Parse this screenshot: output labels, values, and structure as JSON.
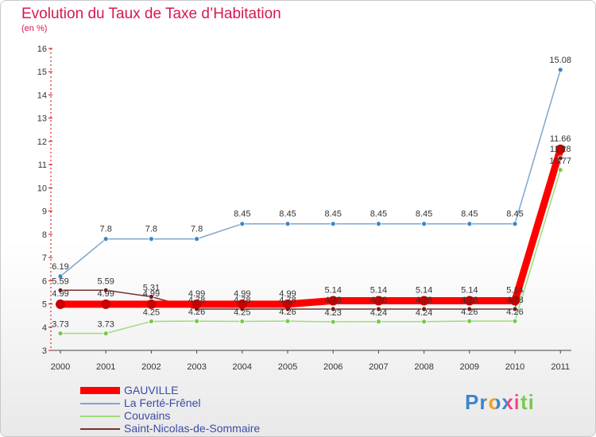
{
  "title": "Evolution du Taux de Taxe d’Habitation",
  "subtitle": "(en %)",
  "logo": "Proxiti",
  "colors": {
    "title": "#d6184f",
    "gauville": "#ff0000",
    "gauville_marker": "#c80000",
    "ferte": "#7ea7cc",
    "ferte_marker": "#3a86c8",
    "couvains": "#9fdc7a",
    "couvains_marker": "#78c850",
    "stnicolas": "#7a2f2f",
    "stnicolas_marker": "#6b1f1f"
  },
  "chart_data": {
    "type": "line",
    "title": "Evolution du Taux de Taxe d’Habitation",
    "ylabel": "(en %)",
    "xlabel": "",
    "ylim": [
      3,
      16
    ],
    "yticks": [
      "3",
      "4",
      "5",
      "6",
      "7",
      "8",
      "9",
      "10",
      "11",
      "12",
      "13",
      "14",
      "15",
      "16"
    ],
    "categories": [
      "2000",
      "2001",
      "2002",
      "2003",
      "2004",
      "2005",
      "2006",
      "2007",
      "2008",
      "2009",
      "2010",
      "2011"
    ],
    "series": [
      {
        "name": "La Ferté-Frênel",
        "key": "ferte",
        "values": [
          6.19,
          7.8,
          7.8,
          7.8,
          8.45,
          8.45,
          8.45,
          8.45,
          8.45,
          8.45,
          8.45,
          15.08
        ],
        "labels": [
          "6.19",
          "7.8",
          "7.8",
          "7.8",
          "8.45",
          "8.45",
          "8.45",
          "8.45",
          "8.45",
          "8.45",
          "8.45",
          "15.08"
        ]
      },
      {
        "name": "Couvains",
        "key": "couvains",
        "values": [
          3.73,
          3.73,
          4.25,
          4.26,
          4.25,
          4.26,
          4.23,
          4.24,
          4.24,
          4.26,
          4.26,
          10.77
        ],
        "labels": [
          "3.73",
          "3.73",
          "4.25",
          "4.26",
          "4.25",
          "4.26",
          "4.23",
          "4.24",
          "4.24",
          "4.26",
          "4.26",
          "10.77"
        ]
      },
      {
        "name": "Saint-Nicolas-de-Sommaire",
        "key": "stnicolas",
        "values": [
          5.59,
          5.59,
          5.31,
          4.78,
          4.78,
          4.78,
          4.78,
          4.78,
          4.78,
          4.78,
          4.78,
          11.28
        ],
        "labels": [
          "5.59",
          "5.59",
          "5.31",
          "4.78",
          "4.78",
          "4.78",
          "4.78",
          "4.78",
          "4.78",
          "4.78",
          "4.78",
          "11.28"
        ]
      },
      {
        "name": "GAUVILLE",
        "key": "gauville",
        "values": [
          4.99,
          4.99,
          4.99,
          4.99,
          4.99,
          4.99,
          5.14,
          5.14,
          5.14,
          5.14,
          5.14,
          11.66
        ],
        "labels": [
          "4.99",
          "4.99",
          "4.99",
          "4.99",
          "4.99",
          "4.99",
          "5.14",
          "5.14",
          "5.14",
          "5.14",
          "5.14",
          "11.66"
        ]
      }
    ],
    "legend": [
      "GAUVILLE",
      "La Ferté-Frênel",
      "Couvains",
      "Saint-Nicolas-de-Sommaire"
    ]
  }
}
